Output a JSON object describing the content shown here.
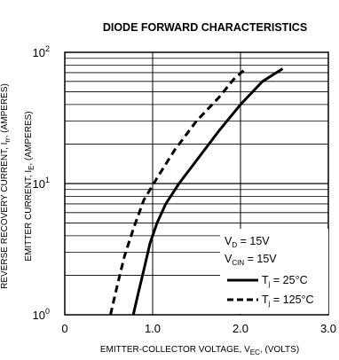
{
  "chart_data": {
    "type": "line",
    "title": "DIODE FORWARD CHARACTERISTICS",
    "xlabel": {
      "prefix": "EMITTER-COLLECTOR VOLTAGE, V",
      "sub": "EC",
      "suffix": ", (VOLTS)"
    },
    "ylabel": {
      "prefix": "EMITTER CURRENT, I",
      "sub": "E",
      "suffix": ", (AMPERES)"
    },
    "ylabel2": {
      "prefix": "REVERSE RECOVERY CURRENT, I",
      "sub": "rr",
      "suffix": ", (AMPERES)"
    },
    "xlim": [
      0,
      3.0
    ],
    "ylim": [
      1,
      100
    ],
    "yscale": "log",
    "x_ticks": [
      "0",
      "1.0",
      "2.0",
      "3.0"
    ],
    "y_ticks": [
      {
        "base": "10",
        "exp": "0"
      },
      {
        "base": "10",
        "exp": "1"
      },
      {
        "base": "10",
        "exp": "2"
      }
    ],
    "grid": true,
    "legend": {
      "placement": "bottom-right",
      "conditions": [
        {
          "main": "V",
          "sub": "D",
          "value": " = 15V"
        },
        {
          "main": "V",
          "sub": "CIN",
          "value": " = 15V"
        }
      ]
    },
    "series": [
      {
        "name": {
          "main": "T",
          "sub": "j",
          "value": " = 25°C"
        },
        "style": "solid",
        "color": "#000000",
        "points": [
          [
            0.78,
            1.0
          ],
          [
            0.84,
            1.5
          ],
          [
            0.9,
            2.2
          ],
          [
            0.97,
            3.5
          ],
          [
            1.05,
            5.0
          ],
          [
            1.15,
            7.0
          ],
          [
            1.3,
            10.0
          ],
          [
            1.5,
            15.0
          ],
          [
            1.75,
            25.0
          ],
          [
            2.0,
            40.0
          ],
          [
            2.25,
            60.0
          ],
          [
            2.48,
            75.0
          ]
        ]
      },
      {
        "name": {
          "main": "T",
          "sub": "j",
          "value": " = 125°C"
        },
        "style": "dashed",
        "color": "#000000",
        "points": [
          [
            0.52,
            1.0
          ],
          [
            0.6,
            1.7
          ],
          [
            0.68,
            2.8
          ],
          [
            0.78,
            4.5
          ],
          [
            0.9,
            7.5
          ],
          [
            1.05,
            11.0
          ],
          [
            1.25,
            18.0
          ],
          [
            1.5,
            30.0
          ],
          [
            1.75,
            45.0
          ],
          [
            1.92,
            62.0
          ],
          [
            2.06,
            75.0
          ]
        ]
      }
    ]
  }
}
